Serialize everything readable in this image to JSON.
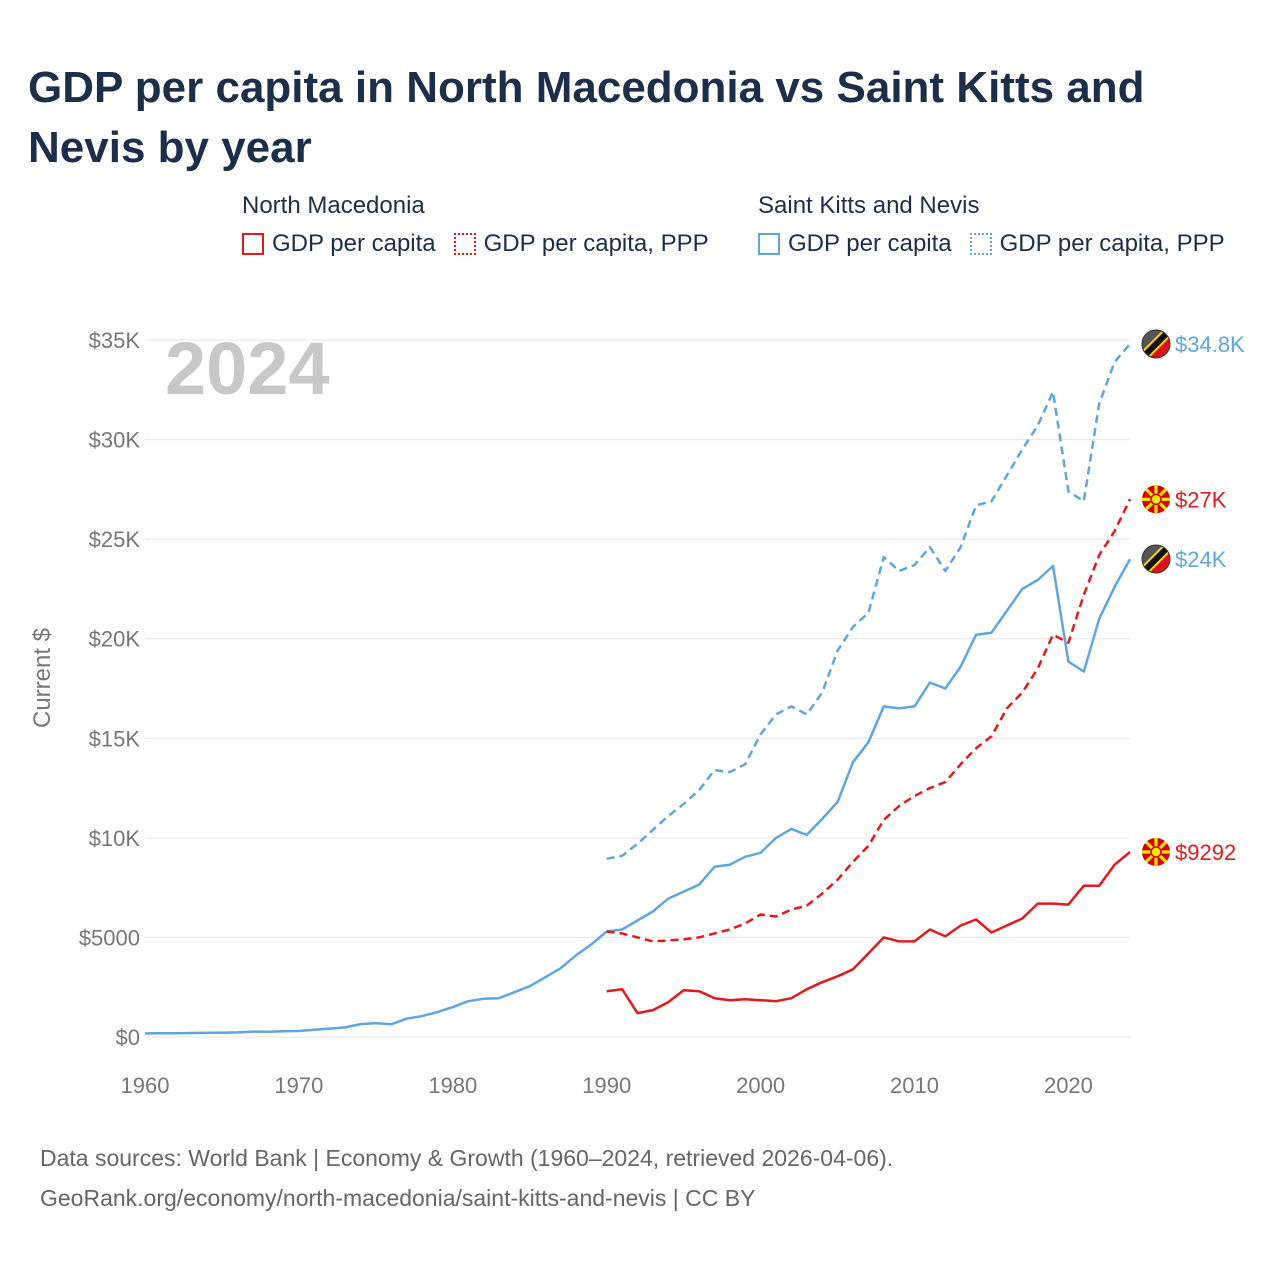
{
  "title": "GDP per capita in North Macedonia vs Saint Kitts and Nevis by year",
  "legend": {
    "groups": [
      {
        "name": "North Macedonia",
        "color": "#e31a1c",
        "items": [
          "GDP per capita",
          "GDP per capita, PPP"
        ]
      },
      {
        "name": "Saint Kitts and Nevis",
        "color": "#5fa6e0",
        "items": [
          "GDP per capita",
          "GDP per capita, PPP"
        ]
      }
    ]
  },
  "footer": {
    "line1": "Data sources: World Bank | Economy & Growth (1960–2024, retrieved 2026-04-06).",
    "line2": "GeoRank.org/economy/north-macedonia/saint-kitts-and-nevis | CC BY"
  },
  "chart_data": {
    "type": "line",
    "year_watermark": "2024",
    "ylabel": "Current $",
    "xlim": [
      1960,
      2024
    ],
    "ylim": [
      0,
      35000
    ],
    "xticks": [
      1960,
      1970,
      1980,
      1990,
      2000,
      2010,
      2020
    ],
    "yticks": [
      0,
      5000,
      10000,
      15000,
      20000,
      25000,
      30000,
      35000
    ],
    "ytick_labels": [
      "$0",
      "$5000",
      "$10K",
      "$15K",
      "$20K",
      "$25K",
      "$30K",
      "$35K"
    ],
    "series": [
      {
        "name": "Saint Kitts and Nevis GDP per capita",
        "country": "Saint Kitts and Nevis",
        "style": "solid",
        "color": "#5fa6e0",
        "end_label": "$24K",
        "x_start": 1960,
        "values": [
          180,
          185,
          190,
          200,
          210,
          215,
          230,
          270,
          260,
          290,
          300,
          360,
          420,
          480,
          650,
          700,
          640,
          920,
          1050,
          1250,
          1500,
          1800,
          1920,
          1950,
          2250,
          2550,
          3000,
          3450,
          4100,
          4650,
          5300,
          5400,
          5850,
          6300,
          6950,
          7300,
          7650,
          8550,
          8650,
          9050,
          9250,
          10000,
          10450,
          10150,
          10950,
          11800,
          13800,
          14800,
          16600,
          16500,
          16600,
          17800,
          17500,
          18600,
          20200,
          20300,
          21400,
          22500,
          22950,
          23650,
          18850,
          18350,
          21000,
          22600,
          24000
        ]
      },
      {
        "name": "Saint Kitts and Nevis GDP per capita, PPP",
        "country": "Saint Kitts and Nevis",
        "style": "dashed",
        "color": "#5fa6e0",
        "end_label": "$34.8K",
        "x_start": 1990,
        "values": [
          8950,
          9100,
          9700,
          10400,
          11100,
          11700,
          12400,
          13400,
          13300,
          13700,
          15200,
          16200,
          16600,
          16200,
          17300,
          19400,
          20600,
          21300,
          24100,
          23400,
          23700,
          24600,
          23400,
          24600,
          26700,
          26900,
          28200,
          29500,
          30700,
          32400,
          27400,
          26900,
          31800,
          33900,
          34800
        ]
      },
      {
        "name": "North Macedonia GDP per capita",
        "country": "North Macedonia",
        "style": "solid",
        "color": "#e31a1c",
        "end_label": "$9292",
        "x_start": 1990,
        "values": [
          2300,
          2400,
          1200,
          1350,
          1750,
          2350,
          2300,
          1950,
          1850,
          1900,
          1850,
          1800,
          1950,
          2400,
          2750,
          3050,
          3400,
          4200,
          5000,
          4800,
          4800,
          5400,
          5050,
          5600,
          5900,
          5250,
          5600,
          5950,
          6700,
          6700,
          6650,
          7600,
          7600,
          8650,
          9292
        ]
      },
      {
        "name": "North Macedonia GDP per capita, PPP",
        "country": "North Macedonia",
        "style": "dashed",
        "color": "#e31a1c",
        "end_label": "$27K",
        "x_start": 1990,
        "values": [
          5300,
          5200,
          5000,
          4800,
          4850,
          4900,
          5000,
          5200,
          5400,
          5700,
          6150,
          6050,
          6400,
          6600,
          7200,
          7900,
          8800,
          9600,
          10900,
          11600,
          12100,
          12500,
          12800,
          13700,
          14500,
          15100,
          16500,
          17300,
          18500,
          20200,
          19800,
          22200,
          24200,
          25400,
          27000
        ]
      }
    ]
  }
}
